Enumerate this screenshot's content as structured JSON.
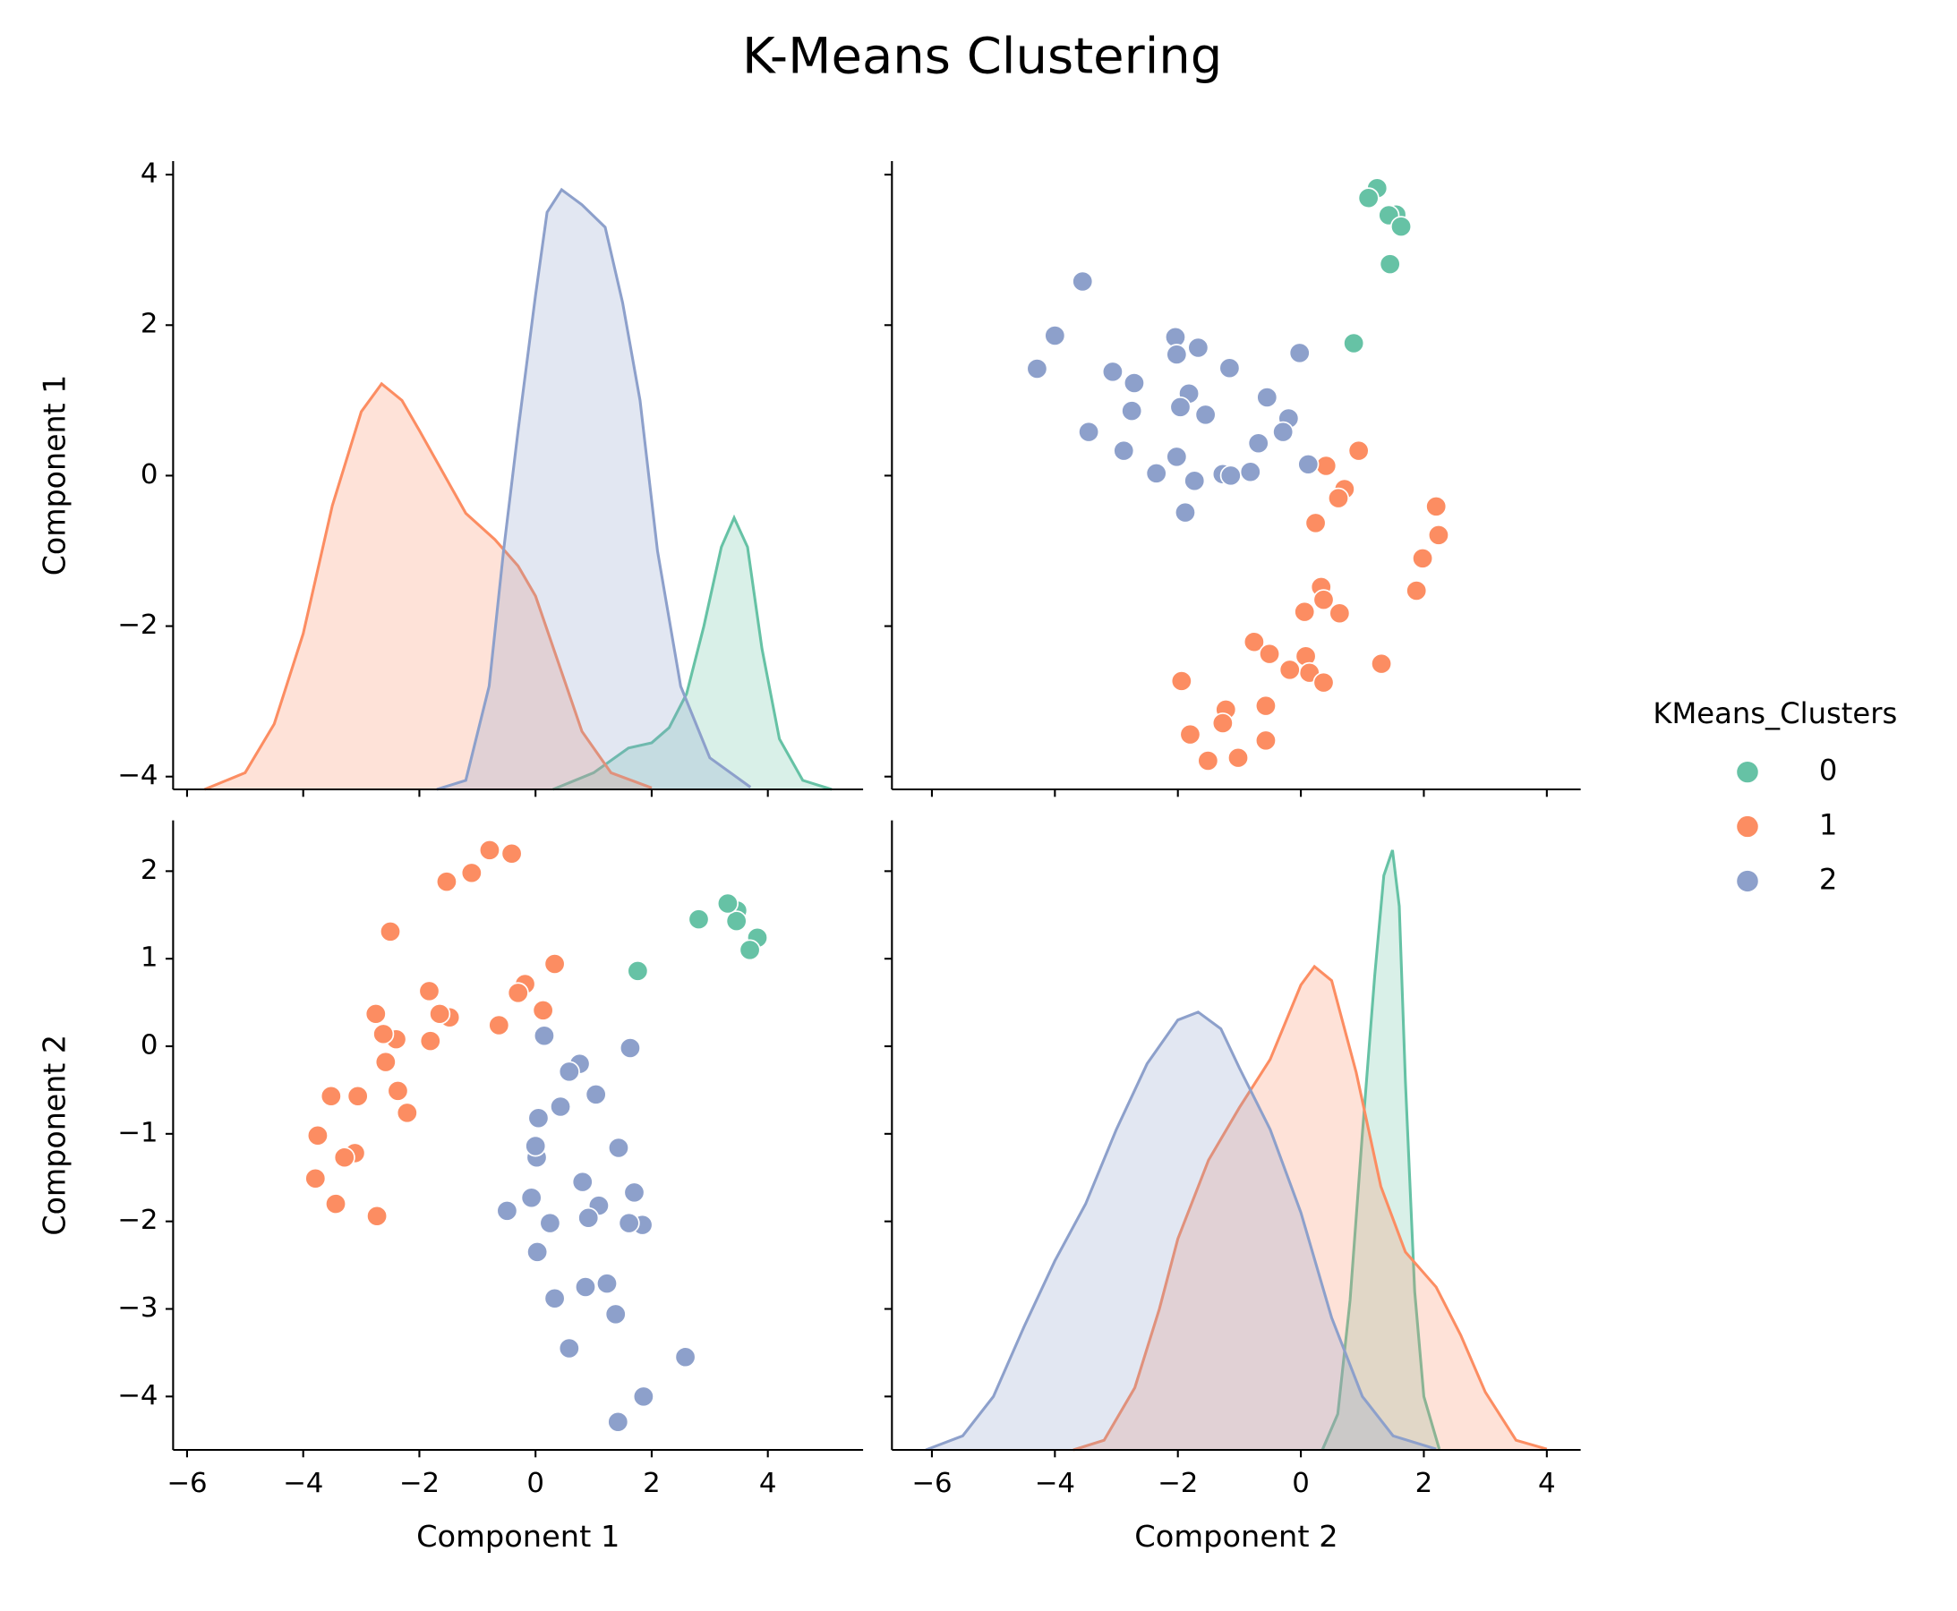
{
  "title": "K-Means Clustering",
  "chart_data": [
    {
      "type": "kde",
      "ylabel": "Component 1",
      "legend_title": "KMeans_Clusters",
      "legend_position": "right",
      "xlim": [
        -6.24,
        5.64
      ],
      "ylim": [
        -4.17,
        4.18
      ],
      "xticks": [
        {
          "value": -6,
          "label": "−6"
        },
        {
          "value": -4,
          "label": "−4"
        },
        {
          "value": -2,
          "label": "−2"
        },
        0,
        2,
        4
      ],
      "yticks": [
        {
          "value": -4,
          "label": "−4"
        },
        {
          "value": -2,
          "label": "−2"
        },
        0,
        2,
        4
      ],
      "series": [
        {
          "name": "0",
          "color": "#66c2a5",
          "x": [
            0.3,
            1.0,
            1.6,
            2.0,
            2.3,
            2.6,
            2.9,
            3.2,
            3.42,
            3.65,
            3.9,
            4.2,
            4.6,
            5.1
          ],
          "values": [
            -4.17,
            -3.95,
            -3.62,
            -3.55,
            -3.35,
            -2.9,
            -2.0,
            -0.95,
            -0.56,
            -0.95,
            -2.3,
            -3.5,
            -4.05,
            -4.17
          ]
        },
        {
          "name": "1",
          "color": "#fc8d62",
          "x": [
            -5.7,
            -5.0,
            -4.5,
            -4.0,
            -3.5,
            -3.0,
            -2.65,
            -2.3,
            -2.0,
            -1.6,
            -1.2,
            -0.7,
            -0.3,
            0.0,
            0.4,
            0.8,
            1.3,
            2.0
          ],
          "values": [
            -4.17,
            -3.95,
            -3.3,
            -2.1,
            -0.4,
            0.85,
            1.22,
            1.0,
            0.6,
            0.05,
            -0.5,
            -0.85,
            -1.2,
            -1.6,
            -2.5,
            -3.4,
            -3.95,
            -4.15
          ]
        },
        {
          "name": "2",
          "color": "#8da0cb",
          "x": [
            -1.7,
            -1.2,
            -0.8,
            -0.55,
            -0.3,
            0.0,
            0.2,
            0.45,
            0.8,
            1.2,
            1.5,
            1.8,
            2.1,
            2.5,
            3.0,
            3.7
          ],
          "values": [
            -4.17,
            -4.05,
            -2.8,
            -1.0,
            0.6,
            2.4,
            3.5,
            3.8,
            3.6,
            3.3,
            2.3,
            1.0,
            -1.0,
            -2.8,
            -3.75,
            -4.14
          ]
        }
      ]
    },
    {
      "type": "scatter",
      "xlim": [
        -6.65,
        4.55
      ],
      "ylim": [
        -4.17,
        4.18
      ],
      "xticks": [
        {
          "value": -6,
          "label": "−6"
        },
        {
          "value": -4,
          "label": "−4"
        },
        {
          "value": -2,
          "label": "−2"
        },
        0,
        2,
        4
      ],
      "yticks": [
        {
          "value": -4,
          "label": "−4"
        },
        {
          "value": -2,
          "label": "−2"
        },
        0,
        2,
        4
      ],
      "series": [
        {
          "color": "#66c2a5",
          "x": [
            1.24,
            1.1,
            1.55,
            1.43,
            1.63,
            1.45,
            0.86
          ],
          "values": [
            3.82,
            3.69,
            3.47,
            3.46,
            3.31,
            2.81,
            1.76
          ]
        },
        {
          "color": "#fc8d62",
          "x": [
            0.94,
            0.41,
            0.71,
            0.61,
            2.2,
            0.24,
            2.24,
            1.98,
            1.88,
            0.33,
            0.37,
            0.06,
            0.63,
            1.31,
            -0.76,
            -0.51,
            0.08,
            0.14,
            -0.18,
            0.37,
            -1.94,
            -1.22,
            -0.57,
            -1.27,
            -1.8,
            -0.57,
            -1.51,
            -1.02
          ],
          "values": [
            0.33,
            0.13,
            -0.18,
            -0.3,
            -0.41,
            -0.63,
            -0.79,
            -1.1,
            -1.53,
            -1.48,
            -1.65,
            -1.81,
            -1.83,
            -2.5,
            -2.21,
            -2.37,
            -2.4,
            -2.62,
            -2.58,
            -2.75,
            -2.73,
            -3.11,
            -3.06,
            -3.29,
            -3.44,
            -3.52,
            -3.79,
            -3.75
          ]
        },
        {
          "color": "#8da0cb",
          "x": [
            -3.55,
            -4.0,
            -4.29,
            -2.04,
            -2.02,
            -1.67,
            -1.16,
            -0.02,
            -3.06,
            -2.71,
            -1.82,
            -0.55,
            -2.75,
            -1.96,
            -1.55,
            -0.2,
            -3.45,
            -0.69,
            -0.29,
            -2.88,
            -2.02,
            0.12,
            -2.35,
            -1.73,
            -1.27,
            -1.14,
            -0.82,
            -1.88
          ],
          "values": [
            2.58,
            1.86,
            1.42,
            1.84,
            1.61,
            1.7,
            1.43,
            1.63,
            1.38,
            1.23,
            1.09,
            1.04,
            0.86,
            0.91,
            0.81,
            0.76,
            0.58,
            0.43,
            0.58,
            0.33,
            0.25,
            0.15,
            0.03,
            -0.07,
            0.02,
            0.0,
            0.05,
            -0.49
          ]
        }
      ]
    },
    {
      "type": "scatter",
      "xlabel": "Component 1",
      "ylabel": "Component 2",
      "xlim": [
        -6.24,
        5.64
      ],
      "ylim": [
        -4.61,
        2.58
      ],
      "xticks": [
        {
          "value": -6,
          "label": "−6"
        },
        {
          "value": -4,
          "label": "−4"
        },
        {
          "value": -2,
          "label": "−2"
        },
        0,
        2,
        4
      ],
      "yticks": [
        {
          "value": -4,
          "label": "−4"
        },
        {
          "value": -3,
          "label": "−3"
        },
        {
          "value": -2,
          "label": "−2"
        },
        {
          "value": -1,
          "label": "−1"
        },
        0,
        1,
        2
      ],
      "series": [
        {
          "color": "#66c2a5",
          "x": [
            3.82,
            3.69,
            3.47,
            3.46,
            3.31,
            2.81,
            1.76
          ],
          "values": [
            1.24,
            1.1,
            1.55,
            1.43,
            1.63,
            1.45,
            0.86
          ]
        },
        {
          "color": "#fc8d62",
          "x": [
            0.33,
            0.13,
            -0.18,
            -0.3,
            -0.41,
            -0.63,
            -0.79,
            -1.1,
            -1.53,
            -1.48,
            -1.65,
            -1.81,
            -1.83,
            -2.5,
            -2.21,
            -2.37,
            -2.4,
            -2.62,
            -2.58,
            -2.75,
            -2.73,
            -3.11,
            -3.06,
            -3.29,
            -3.44,
            -3.52,
            -3.79,
            -3.75
          ],
          "values": [
            0.94,
            0.41,
            0.71,
            0.61,
            2.2,
            0.24,
            2.24,
            1.98,
            1.88,
            0.33,
            0.37,
            0.06,
            0.63,
            1.31,
            -0.76,
            -0.51,
            0.08,
            0.14,
            -0.18,
            0.37,
            -1.94,
            -1.22,
            -0.57,
            -1.27,
            -1.8,
            -0.57,
            -1.51,
            -1.02
          ]
        },
        {
          "color": "#8da0cb",
          "x": [
            2.58,
            1.86,
            1.42,
            1.84,
            1.61,
            1.7,
            1.43,
            1.63,
            1.38,
            1.23,
            1.09,
            1.04,
            0.86,
            0.91,
            0.81,
            0.76,
            0.58,
            0.43,
            0.58,
            0.33,
            0.25,
            0.15,
            0.03,
            -0.07,
            0.02,
            0.0,
            0.05,
            -0.49
          ],
          "values": [
            -3.55,
            -4.0,
            -4.29,
            -2.04,
            -2.02,
            -1.67,
            -1.16,
            -0.02,
            -3.06,
            -2.71,
            -1.82,
            -0.55,
            -2.75,
            -1.96,
            -1.55,
            -0.2,
            -3.45,
            -0.69,
            -0.29,
            -2.88,
            -2.02,
            0.12,
            -2.35,
            -1.73,
            -1.27,
            -1.14,
            -0.82,
            -1.88
          ]
        }
      ]
    },
    {
      "type": "kde",
      "xlabel": "Component 2",
      "xlim": [
        -6.65,
        4.55
      ],
      "ylim": [
        -4.61,
        2.58
      ],
      "xticks": [
        {
          "value": -6,
          "label": "−6"
        },
        {
          "value": -4,
          "label": "−4"
        },
        {
          "value": -2,
          "label": "−2"
        },
        0,
        2,
        4
      ],
      "yticks": [
        {
          "value": -4,
          "label": "−4"
        },
        {
          "value": -3,
          "label": "−3"
        },
        {
          "value": -2,
          "label": "−2"
        },
        {
          "value": -1,
          "label": "−1"
        },
        0,
        1,
        2
      ],
      "series": [
        {
          "color": "#66c2a5",
          "x": [
            0.35,
            0.6,
            0.8,
            1.0,
            1.2,
            1.35,
            1.49,
            1.6,
            1.7,
            1.85,
            2.0,
            2.25
          ],
          "values": [
            -4.61,
            -4.2,
            -2.9,
            -1.0,
            0.8,
            1.95,
            2.24,
            1.6,
            -0.4,
            -2.8,
            -4.0,
            -4.6
          ]
        },
        {
          "color": "#fc8d62",
          "x": [
            -3.7,
            -3.2,
            -2.7,
            -2.3,
            -2.0,
            -1.5,
            -1.0,
            -0.5,
            0.0,
            0.22,
            0.5,
            0.9,
            1.3,
            1.7,
            2.2,
            2.6,
            3.0,
            3.5,
            4.0
          ],
          "values": [
            -4.61,
            -4.5,
            -3.9,
            -3.0,
            -2.2,
            -1.3,
            -0.7,
            -0.15,
            0.7,
            0.91,
            0.75,
            -0.3,
            -1.6,
            -2.35,
            -2.75,
            -3.3,
            -3.95,
            -4.5,
            -4.6
          ]
        },
        {
          "color": "#8da0cb",
          "x": [
            -6.1,
            -5.5,
            -5.0,
            -4.5,
            -4.0,
            -3.5,
            -3.0,
            -2.5,
            -2.0,
            -1.67,
            -1.3,
            -1.0,
            -0.5,
            0.0,
            0.5,
            1.0,
            1.5,
            2.2
          ],
          "values": [
            -4.61,
            -4.45,
            -4.0,
            -3.2,
            -2.45,
            -1.8,
            -0.95,
            -0.2,
            0.3,
            0.39,
            0.2,
            -0.25,
            -0.95,
            -1.9,
            -3.1,
            -4.0,
            -4.45,
            -4.6
          ]
        }
      ]
    }
  ]
}
